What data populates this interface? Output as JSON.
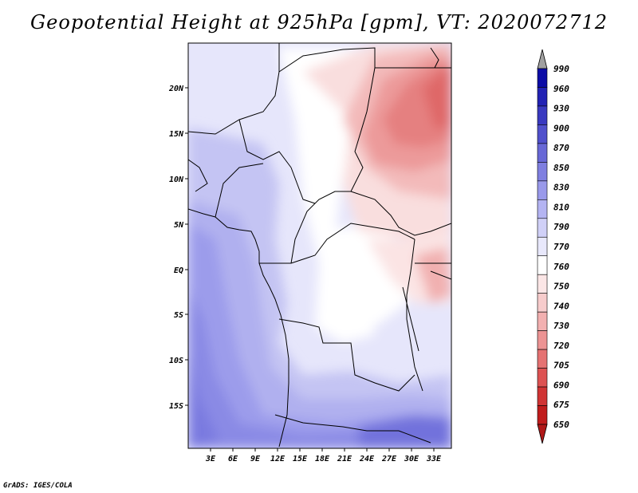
{
  "title": "Geopotential Height at 925hPa [gpm], VT: 2020072712",
  "footer": "GrADS: IGES/COLA",
  "map": {
    "lat_labels": [
      "20N",
      "15N",
      "10N",
      "5N",
      "EQ",
      "5S",
      "10S",
      "15S"
    ],
    "lon_labels": [
      "3E",
      "6E",
      "9E",
      "12E",
      "15E",
      "18E",
      "21E",
      "24E",
      "27E",
      "30E",
      "33E"
    ]
  },
  "colorbar": {
    "levels": [
      "990",
      "960",
      "930",
      "900",
      "870",
      "850",
      "830",
      "810",
      "790",
      "770",
      "760",
      "750",
      "740",
      "730",
      "720",
      "705",
      "690",
      "675",
      "650"
    ],
    "colors": {
      "top_arrow": "#a0a0a0",
      "bottom_arrow": "#b01818",
      "bands": [
        "#0c0ca6",
        "#2222b4",
        "#3939c0",
        "#5050cc",
        "#6868d6",
        "#7f7fe0",
        "#9999ea",
        "#b4b4f2",
        "#d0d0f7",
        "#e8e8fb",
        "#ffffff",
        "#fbe6e6",
        "#f7cccc",
        "#f2b0b0",
        "#ec9393",
        "#e57272",
        "#dd5252",
        "#d03434",
        "#c01c1c"
      ]
    }
  }
}
